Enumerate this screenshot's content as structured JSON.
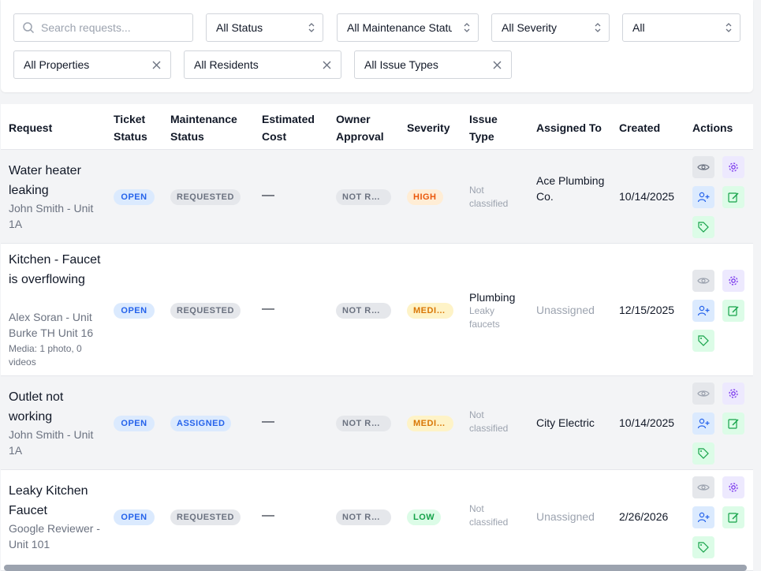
{
  "filters": {
    "search_placeholder": "Search requests...",
    "status": "All Status",
    "maintenance_status": "All Maintenance Status",
    "severity": "All Severity",
    "all": "All",
    "properties": "All Properties",
    "residents": "All Residents",
    "issue_types": "All Issue Types"
  },
  "columns": {
    "request": "Request",
    "ticket_status_1": "Ticket",
    "ticket_status_2": "Status",
    "maintenance_status_1": "Maintenance",
    "maintenance_status_2": "Status",
    "estimated_cost_1": "Estimated",
    "estimated_cost_2": "Cost",
    "owner_approval_1": "Owner",
    "owner_approval_2": "Approval",
    "severity": "Severity",
    "issue_type_1": "Issue",
    "issue_type_2": "Type",
    "assigned_to": "Assigned To",
    "created": "Created",
    "actions": "Actions"
  },
  "rows": [
    {
      "title": "Water heater leaking",
      "subtitle": "John Smith - Unit 1A",
      "ticket_status": "OPEN",
      "maintenance_status": "REQUESTED",
      "estimated_cost": "—",
      "owner_approval": "NOT REQUIRED",
      "severity": "HIGH",
      "issue_type": "Not classified",
      "assigned_to": "Ace Plumbing Co.",
      "created": "10/14/2025"
    },
    {
      "title": "Kitchen - Faucet is overflowing",
      "subtitle": "Alex Soran - Unit Burke TH Unit 16",
      "media": "Media: 1 photo, 0 videos",
      "ticket_status": "OPEN",
      "maintenance_status": "REQUESTED",
      "estimated_cost": "—",
      "owner_approval": "NOT REQUIRED",
      "severity": "MEDIUM",
      "issue_type": "Plumbing",
      "issue_subtype": "Leaky faucets",
      "assigned_to": "Unassigned",
      "created": "12/15/2025"
    },
    {
      "title": "Outlet not working",
      "subtitle": "John Smith - Unit 1A",
      "ticket_status": "OPEN",
      "maintenance_status": "ASSIGNED",
      "estimated_cost": "—",
      "owner_approval": "NOT REQUIRED",
      "severity": "MEDIUM",
      "issue_type": "Not classified",
      "assigned_to": "City Electric",
      "created": "10/14/2025"
    },
    {
      "title": "Leaky Kitchen Faucet",
      "subtitle": "Google Reviewer - Unit 101",
      "ticket_status": "OPEN",
      "maintenance_status": "REQUESTED",
      "estimated_cost": "—",
      "owner_approval": "NOT REQUIRED",
      "severity": "LOW",
      "issue_type": "Not classified",
      "assigned_to": "Unassigned",
      "created": "2/26/2026"
    }
  ],
  "actions": {
    "view_icon": "eye-icon",
    "settings_icon": "gear-icon",
    "assign_icon": "user-plus-icon",
    "edit_icon": "edit-icon",
    "tag_icon": "tag-icon"
  },
  "colors": {
    "open": "#2563eb",
    "high": "#ea580c",
    "medium": "#d97706",
    "low": "#16a34a",
    "gear": "#7c3aed",
    "edit": "#16a34a",
    "assign": "#2563eb"
  }
}
